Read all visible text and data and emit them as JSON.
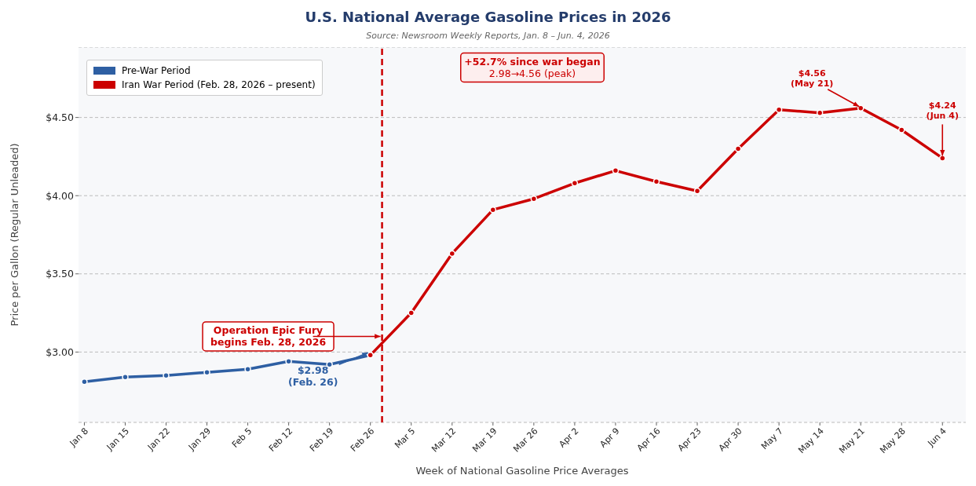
{
  "chart_data": {
    "type": "line",
    "title": "U.S. National Average Gasoline Prices in 2026",
    "subtitle": "Source: Newsroom Weekly Reports, Jan. 8 – Jun. 4, 2026",
    "xlabel": "Week of National Gasoline Price Averages",
    "ylabel": "Price per Gallon (Regular Unleaded)",
    "xlim": [
      "--01-07",
      "--06-08"
    ],
    "ylim": [
      2.55,
      4.95
    ],
    "xticks": [
      {
        "value": "--01-08",
        "label": "Jan 8"
      },
      {
        "value": "--01-15",
        "label": "Jan 15"
      },
      {
        "value": "--01-22",
        "label": "Jan 22"
      },
      {
        "value": "--01-29",
        "label": "Jan 29"
      },
      {
        "value": "--02-05",
        "label": "Feb 5"
      },
      {
        "value": "--02-12",
        "label": "Feb 12"
      },
      {
        "value": "--02-19",
        "label": "Feb 19"
      },
      {
        "value": "--02-26",
        "label": "Feb 26"
      },
      {
        "value": "--03-05",
        "label": "Mar 5"
      },
      {
        "value": "--03-12",
        "label": "Mar 12"
      },
      {
        "value": "--03-19",
        "label": "Mar 19"
      },
      {
        "value": "--03-26",
        "label": "Mar 26"
      },
      {
        "value": "--04-02",
        "label": "Apr 2"
      },
      {
        "value": "--04-09",
        "label": "Apr 9"
      },
      {
        "value": "--04-16",
        "label": "Apr 16"
      },
      {
        "value": "--04-23",
        "label": "Apr 23"
      },
      {
        "value": "--04-30",
        "label": "Apr 30"
      },
      {
        "value": "--05-07",
        "label": "May 7"
      },
      {
        "value": "--05-14",
        "label": "May 14"
      },
      {
        "value": "--05-21",
        "label": "May 21"
      },
      {
        "value": "--05-28",
        "label": "May 28"
      },
      {
        "value": "--06-04",
        "label": "Jun 4"
      }
    ],
    "yticks": [
      {
        "value": 3,
        "label": "$3.00"
      },
      {
        "value": 3.5,
        "label": "$3.50"
      },
      {
        "value": 4,
        "label": "$4.00"
      },
      {
        "value": 4.5,
        "label": "$4.50"
      }
    ],
    "grid": "y",
    "legend": "top left",
    "marker": "circle",
    "line_style": "solid",
    "series": [
      {
        "name": "Pre-War Period",
        "color": "#2e5fa3",
        "x": [
          "--01-08",
          "--01-15",
          "--01-22",
          "--01-29",
          "--02-05",
          "--02-12",
          "--02-19",
          "--02-26"
        ],
        "values": [
          2.81,
          2.84,
          2.85,
          2.87,
          2.89,
          2.94,
          2.92,
          2.98
        ]
      },
      {
        "name": "Iran War Period (Feb. 28, 2026 – present)",
        "color": "#cc0000",
        "x": [
          "--02-26",
          "--03-05",
          "--03-12",
          "--03-19",
          "--03-26",
          "--04-02",
          "--04-09",
          "--04-16",
          "--04-23",
          "--04-30",
          "--05-07",
          "--05-14",
          "--05-21",
          "--05-28",
          "--06-04"
        ],
        "values": [
          2.98,
          3.25,
          3.63,
          3.91,
          3.98,
          4.08,
          4.16,
          4.09,
          4.03,
          4.3,
          4.55,
          4.53,
          4.56,
          4.42,
          4.24
        ]
      }
    ],
    "ref_lines": [
      {
        "axis": "x",
        "value": "--02-28",
        "color": "#cc0000",
        "line_style": "dashed"
      }
    ],
    "annotations": [
      {
        "text": "Operation Epic Fury\nbegins Feb. 28, 2026",
        "x": "--02-28",
        "y": 3.1
      },
      {
        "text": "$2.98\n(Feb. 26)",
        "x": "--02-26",
        "y": 2.98
      },
      "+52.7% since war began\n2.98→4.56 (peak)",
      {
        "text": "$4.56\n(May 21)",
        "x": "--05-21",
        "y": 4.56
      },
      {
        "text": "$4.24\n(Jun 4)",
        "x": "--06-04",
        "y": 4.24
      }
    ]
  }
}
